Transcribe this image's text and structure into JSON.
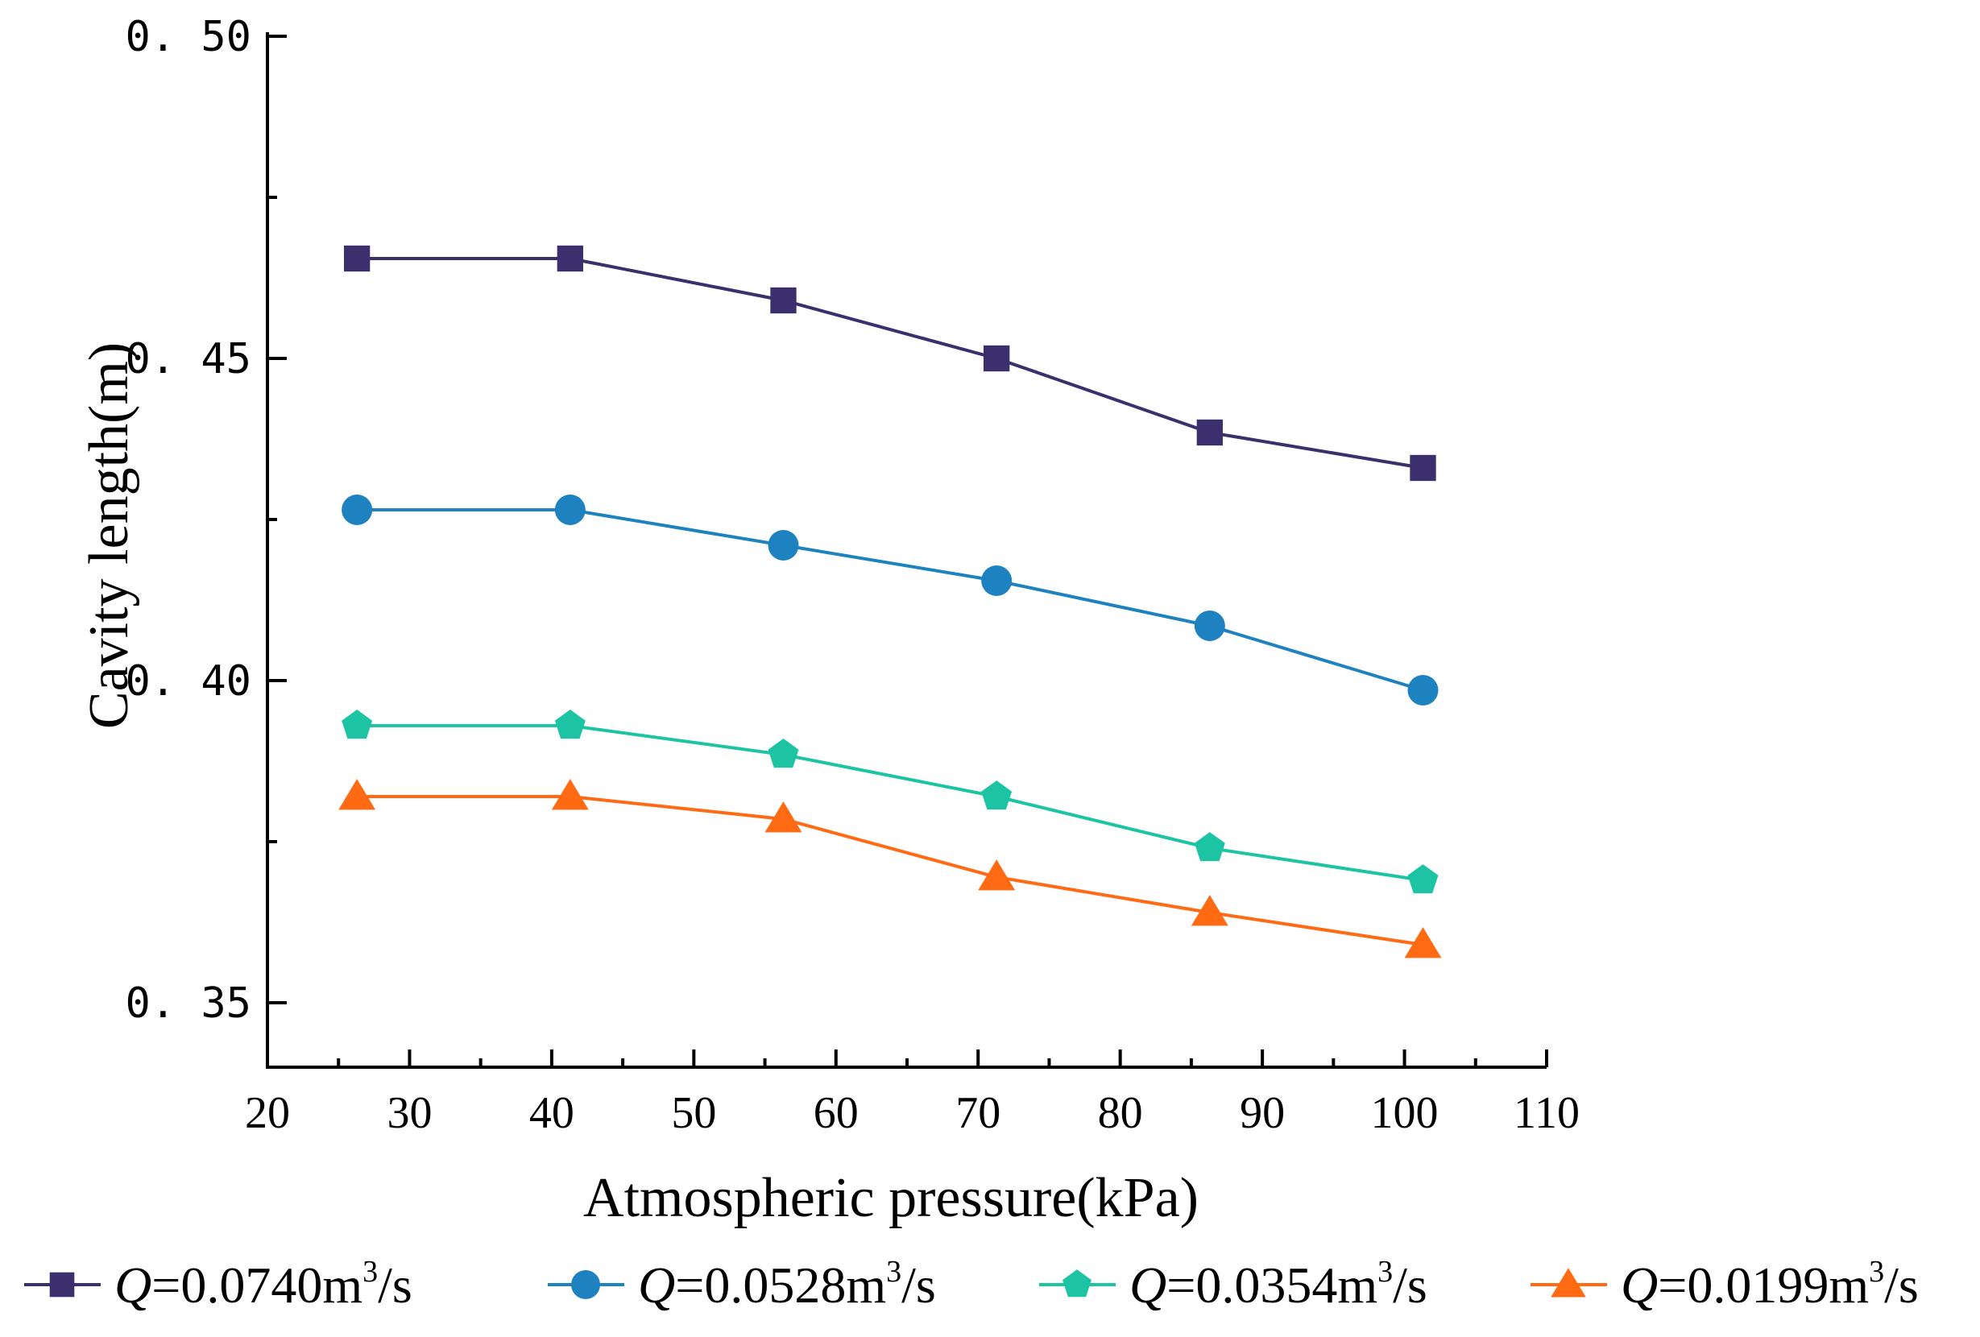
{
  "chart_data": {
    "type": "line",
    "xlabel": "Atmospheric pressure(kPa)",
    "ylabel": "Cavity length(m)",
    "xlim": [
      20,
      110
    ],
    "ylim": [
      0.34,
      0.5
    ],
    "x_ticks": [
      20,
      30,
      40,
      50,
      60,
      70,
      80,
      90,
      100,
      110
    ],
    "x_tick_labels": [
      "20",
      "30",
      "40",
      "50",
      "60",
      "70",
      "80",
      "90",
      "100",
      "110"
    ],
    "y_ticks": [
      0.35,
      0.4,
      0.45,
      0.5
    ],
    "y_tick_labels": [
      "0. 35",
      "0. 40",
      "0. 45",
      "0. 50"
    ],
    "grid": false,
    "legend_position": "bottom",
    "x": [
      26.3,
      41.3,
      56.3,
      71.3,
      86.3,
      101.3
    ],
    "series": [
      {
        "name": "Q=0.0740m3/s",
        "legend": {
          "symbol": "Q",
          "value": "=0.0740m",
          "exp": "3",
          "unit": "/s"
        },
        "marker": "square",
        "color": "#3b2f6e",
        "values": [
          0.4655,
          0.4655,
          0.459,
          0.45,
          0.4385,
          0.433
        ]
      },
      {
        "name": "Q=0.0528m3/s",
        "legend": {
          "symbol": "Q",
          "value": "=0.0528m",
          "exp": "3",
          "unit": "/s"
        },
        "marker": "circle",
        "color": "#1f82c0",
        "values": [
          0.4265,
          0.4265,
          0.421,
          0.4155,
          0.4085,
          0.3985
        ]
      },
      {
        "name": "Q=0.0354m3/s",
        "legend": {
          "symbol": "Q",
          "value": "=0.0354m",
          "exp": "3",
          "unit": "/s"
        },
        "marker": "pentagon",
        "color": "#1dc4a3",
        "values": [
          0.393,
          0.393,
          0.3885,
          0.382,
          0.374,
          0.369
        ]
      },
      {
        "name": "Q=0.0199m3/s",
        "legend": {
          "symbol": "Q",
          "value": "=0.0199m",
          "exp": "3",
          "unit": "/s"
        },
        "marker": "triangle",
        "color": "#ff6a13",
        "values": [
          0.382,
          0.382,
          0.3785,
          0.3695,
          0.364,
          0.359
        ]
      }
    ]
  }
}
